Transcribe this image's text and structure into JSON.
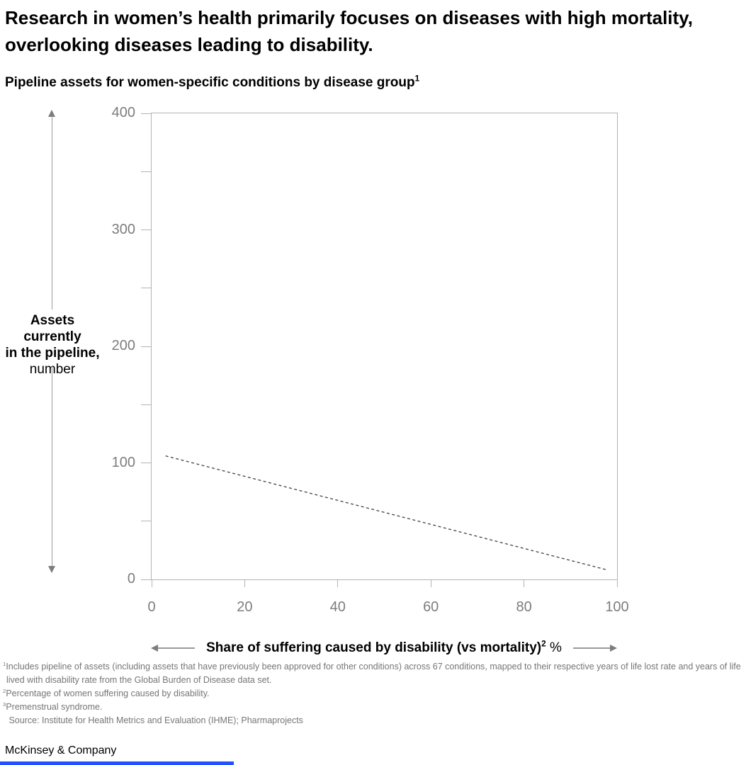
{
  "page": {
    "title": "Research in women’s health primarily focuses on diseases with high mortality, overlooking diseases leading to disability.",
    "footer_logo": "McKinsey & Company",
    "accent_color": "#2251FF"
  },
  "chart_data": {
    "type": "scatter",
    "title": "Pipeline assets for women-specific conditions by disease group",
    "title_sup": "1",
    "xlabel": "Share of suffering caused by disability (vs mortality)",
    "xlabel_sup": "2",
    "xlabel_unit": " %",
    "ylabel_lines": [
      "Assets currently",
      "in the pipeline,"
    ],
    "ylabel_unit": "number",
    "xlim": [
      0,
      100
    ],
    "ylim": [
      0,
      400
    ],
    "x_ticks": [
      0,
      20,
      40,
      60,
      80,
      100
    ],
    "y_ticks": [
      0,
      100,
      200,
      300,
      400
    ],
    "y_minor_ticks": [
      50,
      150,
      250,
      350
    ],
    "grid": false,
    "legend": "none",
    "points": [],
    "trendline": {
      "style": "dashed",
      "color": "#404040",
      "points": [
        [
          3,
          106
        ],
        [
          98,
          8
        ]
      ]
    },
    "axis_color": "#b4b4b4",
    "tick_label_color": "#7d7d7d"
  },
  "footnotes": [
    {
      "sup": "1",
      "text": "Includes pipeline of assets (including assets that have previously been approved for other conditions) across 67 conditions, mapped to their respective years of life lost rate and years of life lived with disability rate from the Global Burden of Disease data set."
    },
    {
      "sup": "2",
      "text": "Percentage of women suffering caused by disability."
    },
    {
      "sup": "3",
      "text": "Premenstrual syndrome."
    },
    {
      "sup": "",
      "text": "Source: Institute for Health Metrics and Evaluation (IHME); Pharmaprojects"
    }
  ]
}
